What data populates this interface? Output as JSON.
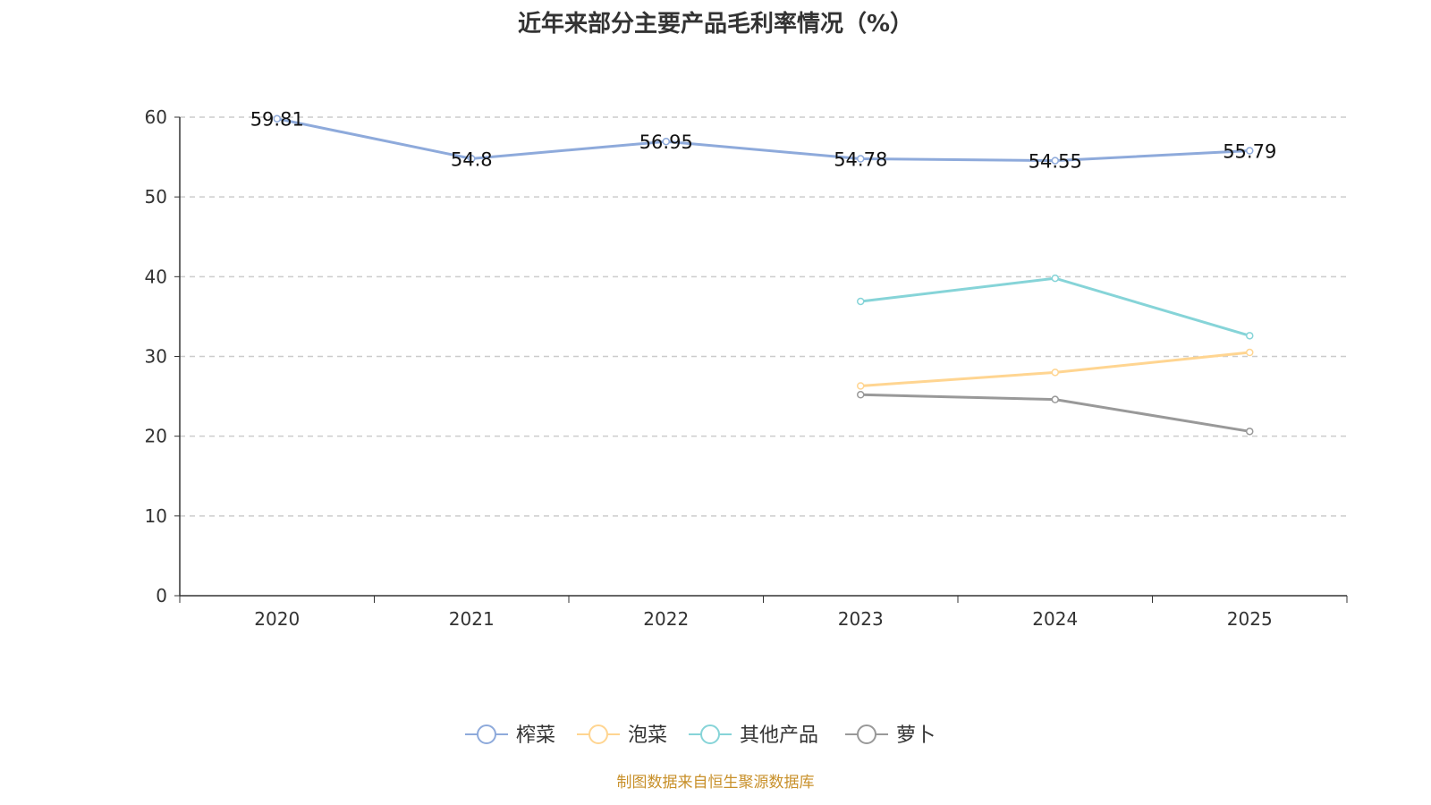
{
  "chart_data": {
    "type": "line",
    "title": "近年来部分主要产品毛利率情况（%）",
    "categories": [
      "2020",
      "2021",
      "2022",
      "2023",
      "2024",
      "2025"
    ],
    "ylim": [
      0,
      60
    ],
    "yticks": [
      0,
      10,
      20,
      30,
      40,
      50,
      60
    ],
    "grid": true,
    "legend_position": "bottom",
    "series": [
      {
        "name": "榨菜",
        "color": "#8eaadb",
        "values": [
          59.81,
          54.8,
          56.95,
          54.78,
          54.55,
          55.79
        ],
        "labels": [
          "59.81",
          "54.8",
          "56.95",
          "54.78",
          "54.55",
          "55.79"
        ]
      },
      {
        "name": "泡菜",
        "color": "#ffd591",
        "values": [
          null,
          null,
          null,
          26.3,
          28.0,
          30.5
        ]
      },
      {
        "name": "其他产品",
        "color": "#86d4d8",
        "values": [
          null,
          null,
          null,
          36.9,
          39.8,
          32.6
        ]
      },
      {
        "name": "萝卜",
        "color": "#999999",
        "values": [
          null,
          null,
          null,
          25.2,
          24.6,
          20.6
        ]
      }
    ]
  },
  "source": "制图数据来自恒生聚源数据库"
}
